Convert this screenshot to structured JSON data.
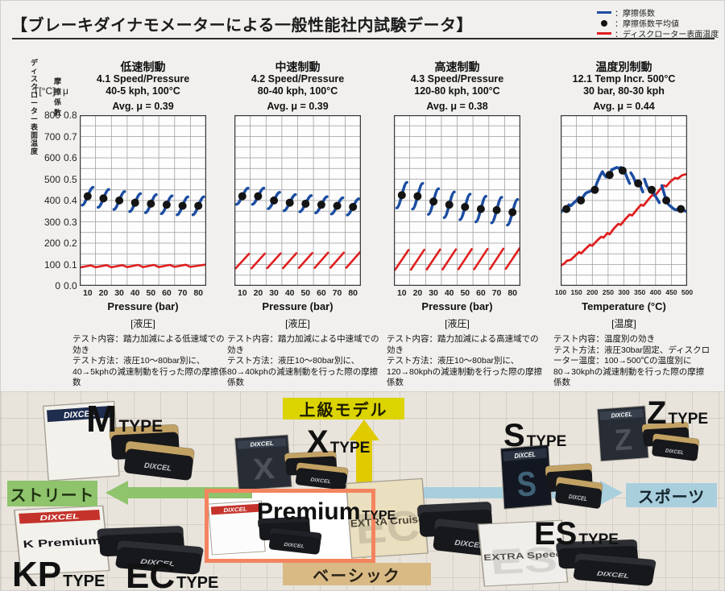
{
  "header": {
    "title": "【ブレーキダイナモメーターによる一般性能社内試験データ】",
    "legend": [
      {
        "swatch": "blue-line",
        "label": "：摩擦係数"
      },
      {
        "swatch": "black-dot",
        "label": "：摩擦係数平均値"
      },
      {
        "swatch": "red-line",
        "label": "：ディスクローター表面温度"
      }
    ]
  },
  "colors": {
    "blue": "#1c4da1",
    "red": "#e01f1f",
    "dot": "#141414",
    "grid": "#9b9b9b",
    "grid_border": "#3c3c3c",
    "plot_bg": "#fdfdfd",
    "street_green": "#8fc36c",
    "sport_blue": "#a9cfdd",
    "upper_yellow": "#dcd400",
    "basic_tan": "#d9ba85",
    "up_arrow_yellow": "#e0ca00",
    "down_arrow_pale": "#ebe4ab",
    "premium_border": "#f4845f"
  },
  "y_axis": {
    "temp_header": "ディスク\nローター\n表面温度",
    "mu_header": "摩擦係数",
    "temp_unit": "T[°C]",
    "mu_unit": "μ",
    "temp_ticks": [
      "800",
      "700",
      "600",
      "500",
      "400",
      "300",
      "200",
      "100",
      "0"
    ],
    "mu_ticks": [
      "0.8",
      "0.7",
      "0.6",
      "0.5",
      "0.4",
      "0.3",
      "0.2",
      "0.1",
      "0.0"
    ]
  },
  "chart_data": [
    {
      "type": "line",
      "category": "低速制動",
      "test_id": "4.1 Speed/Pressure",
      "condition": "40-5 kph, 100°C",
      "avg_label": "Avg. μ = 0.39",
      "avg_mu": 0.39,
      "xlabel": "Pressure (bar)",
      "xlabel_jp": "[液圧]",
      "desc_content": "テスト内容：踏力加減による低速域での効き",
      "desc_method": "テスト方法：液圧10～80bar別に、40→5kphの減速制動を行った際の摩擦係数",
      "x_ticks": [
        10,
        20,
        30,
        40,
        50,
        60,
        70,
        80
      ],
      "x_range": [
        5,
        85
      ],
      "mu_range": [
        0,
        0.8
      ],
      "temp_range": [
        0,
        800
      ],
      "dots": [
        [
          10,
          0.42
        ],
        [
          20,
          0.41
        ],
        [
          30,
          0.4
        ],
        [
          40,
          0.39
        ],
        [
          50,
          0.385
        ],
        [
          60,
          0.38
        ],
        [
          70,
          0.375
        ],
        [
          80,
          0.375
        ]
      ],
      "stroke_halfw": 3.4,
      "stroke_rise": 0.042,
      "red_path": [
        [
          5,
          86
        ],
        [
          12,
          96
        ],
        [
          15,
          87
        ],
        [
          22,
          97
        ],
        [
          25,
          87
        ],
        [
          32,
          97
        ],
        [
          35,
          88
        ],
        [
          42,
          98
        ],
        [
          45,
          88
        ],
        [
          52,
          98
        ],
        [
          55,
          88
        ],
        [
          62,
          98
        ],
        [
          65,
          89
        ],
        [
          72,
          99
        ],
        [
          75,
          89
        ],
        [
          85,
          100
        ]
      ]
    },
    {
      "type": "line",
      "category": "中速制動",
      "test_id": "4.2 Speed/Pressure",
      "condition": "80-40 kph, 100°C",
      "avg_label": "Avg. μ = 0.39",
      "avg_mu": 0.39,
      "xlabel": "Pressure (bar)",
      "xlabel_jp": "[液圧]",
      "desc_content": "テスト内容：踏力加減による中速域での効き",
      "desc_method": "テスト方法：液圧10～80bar別に、80→40kphの減速制動を行った際の摩擦係数",
      "x_ticks": [
        10,
        20,
        30,
        40,
        50,
        60,
        70,
        80
      ],
      "x_range": [
        5,
        85
      ],
      "mu_range": [
        0,
        0.8
      ],
      "temp_range": [
        0,
        800
      ],
      "dots": [
        [
          10,
          0.42
        ],
        [
          20,
          0.42
        ],
        [
          30,
          0.4
        ],
        [
          40,
          0.39
        ],
        [
          50,
          0.385
        ],
        [
          60,
          0.38
        ],
        [
          70,
          0.375
        ],
        [
          80,
          0.37
        ]
      ],
      "stroke_halfw": 3.6,
      "stroke_rise": 0.038,
      "red_path": [
        [
          5.8,
          82
        ],
        [
          14.2,
          150
        ],
        null,
        [
          15.8,
          82
        ],
        [
          24.2,
          151
        ],
        null,
        [
          25.8,
          83
        ],
        [
          34.2,
          152
        ],
        null,
        [
          35.8,
          83
        ],
        [
          44.2,
          153
        ],
        null,
        [
          45.8,
          84
        ],
        [
          54.2,
          154
        ],
        null,
        [
          55.8,
          84
        ],
        [
          64.2,
          155
        ],
        null,
        [
          65.8,
          85
        ],
        [
          74.2,
          156
        ],
        null,
        [
          75.8,
          85
        ],
        [
          84.5,
          158
        ]
      ]
    },
    {
      "type": "line",
      "category": "高速制動",
      "test_id": "4.3 Speed/Pressure",
      "condition": "120-80 kph, 100°C",
      "avg_label": "Avg. μ = 0.38",
      "avg_mu": 0.38,
      "xlabel": "Pressure (bar)",
      "xlabel_jp": "[液圧]",
      "desc_content": "テスト内容：踏力加減による高速域での効き",
      "desc_method": "テスト方法：液圧10～80bar別に、120→80kphの減速制動を行った際の摩擦係数",
      "x_ticks": [
        10,
        20,
        30,
        40,
        50,
        60,
        70,
        80
      ],
      "x_range": [
        5,
        85
      ],
      "mu_range": [
        0,
        0.8
      ],
      "temp_range": [
        0,
        800
      ],
      "dots": [
        [
          10,
          0.425
        ],
        [
          20,
          0.42
        ],
        [
          30,
          0.395
        ],
        [
          40,
          0.38
        ],
        [
          50,
          0.37
        ],
        [
          60,
          0.36
        ],
        [
          70,
          0.355
        ],
        [
          80,
          0.345
        ]
      ],
      "stroke_halfw": 3.2,
      "stroke_rise": 0.06,
      "red_path": [
        [
          5.8,
          76
        ],
        [
          14.2,
          168
        ],
        null,
        [
          15.8,
          76
        ],
        [
          24.2,
          169
        ],
        null,
        [
          25.8,
          77
        ],
        [
          34.2,
          170
        ],
        null,
        [
          35.8,
          77
        ],
        [
          44.2,
          171
        ],
        null,
        [
          45.8,
          78
        ],
        [
          54.2,
          172
        ],
        null,
        [
          55.8,
          78
        ],
        [
          64.2,
          173
        ],
        null,
        [
          65.8,
          79
        ],
        [
          74.2,
          174
        ],
        null,
        [
          75.8,
          80
        ],
        [
          84.5,
          176
        ]
      ]
    },
    {
      "type": "line",
      "category": "温度別制動",
      "test_id": "12.1 Temp Incr. 500°C",
      "condition": "30 bar, 80-30 kph",
      "avg_label": "Avg. μ = 0.44",
      "avg_mu": 0.44,
      "xlabel": "Temperature (°C)",
      "xlabel_jp": "[温度]",
      "desc_content": "テスト内容：温度別の効き",
      "desc_method": "テスト方法：液圧30bar固定、ディスクローター温度：100→500℃の温度別に80→30kphの減速制動を行った際の摩擦係数",
      "x_ticks": [
        100,
        150,
        200,
        250,
        300,
        350,
        400,
        450,
        500
      ],
      "x_range": [
        100,
        500
      ],
      "mu_range": [
        0,
        0.8
      ],
      "temp_range": [
        0,
        800
      ],
      "dots": [
        [
          118,
          0.36
        ],
        [
          164,
          0.4
        ],
        [
          208,
          0.45
        ],
        [
          255,
          0.52
        ],
        [
          296,
          0.54
        ],
        [
          345,
          0.48
        ],
        [
          388,
          0.45
        ],
        [
          434,
          0.4
        ],
        [
          480,
          0.36
        ]
      ],
      "blue_path": [
        [
          100,
          0.345
        ],
        [
          108,
          0.355
        ],
        [
          118,
          0.36
        ],
        [
          126,
          0.38
        ],
        [
          132,
          0.375
        ],
        [
          142,
          0.39
        ],
        [
          150,
          0.4
        ],
        [
          158,
          0.415
        ],
        [
          164,
          0.4
        ],
        [
          172,
          0.42
        ],
        [
          180,
          0.435
        ],
        [
          188,
          0.44
        ],
        [
          196,
          0.445
        ],
        [
          208,
          0.45
        ],
        [
          214,
          0.48
        ],
        [
          220,
          0.5
        ],
        [
          226,
          0.52
        ],
        [
          232,
          0.535
        ],
        [
          238,
          0.52
        ],
        [
          244,
          0.51
        ],
        [
          250,
          0.52
        ],
        [
          255,
          0.52
        ],
        [
          262,
          0.545
        ],
        [
          270,
          0.55
        ],
        [
          278,
          0.555
        ],
        [
          285,
          0.55
        ],
        [
          290,
          0.555
        ],
        [
          296,
          0.54
        ],
        [
          304,
          0.53
        ],
        [
          312,
          0.5
        ],
        [
          318,
          0.48
        ],
        null,
        [
          322,
          0.53
        ],
        [
          330,
          0.51
        ],
        [
          338,
          0.48
        ],
        [
          345,
          0.48
        ],
        [
          352,
          0.47
        ],
        [
          360,
          0.44
        ],
        null,
        [
          365,
          0.5
        ],
        [
          372,
          0.47
        ],
        [
          380,
          0.45
        ],
        [
          388,
          0.45
        ],
        [
          396,
          0.43
        ],
        [
          404,
          0.41
        ],
        [
          412,
          0.39
        ],
        null,
        [
          420,
          0.47
        ],
        [
          428,
          0.43
        ],
        [
          434,
          0.4
        ],
        [
          442,
          0.38
        ],
        [
          450,
          0.37
        ],
        [
          458,
          0.36
        ],
        [
          466,
          0.355
        ],
        [
          474,
          0.365
        ],
        [
          480,
          0.36
        ],
        [
          488,
          0.355
        ],
        [
          495,
          0.35
        ]
      ],
      "red_path": [
        [
          100,
          95
        ],
        [
          112,
          105
        ],
        [
          120,
          118
        ],
        [
          132,
          122
        ],
        [
          145,
          140
        ],
        [
          158,
          158
        ],
        [
          165,
          152
        ],
        [
          178,
          172
        ],
        [
          192,
          192
        ],
        [
          200,
          188
        ],
        [
          214,
          210
        ],
        [
          228,
          230
        ],
        [
          236,
          226
        ],
        [
          248,
          248
        ],
        [
          255,
          242
        ],
        [
          268,
          268
        ],
        [
          282,
          290
        ],
        [
          290,
          286
        ],
        [
          304,
          312
        ],
        [
          318,
          334
        ],
        [
          326,
          330
        ],
        [
          340,
          356
        ],
        [
          354,
          380
        ],
        [
          362,
          376
        ],
        [
          376,
          402
        ],
        [
          390,
          426
        ],
        [
          398,
          422
        ],
        [
          412,
          448
        ],
        [
          426,
          470
        ],
        [
          434,
          466
        ],
        [
          448,
          490
        ],
        [
          462,
          506
        ],
        [
          470,
          502
        ],
        [
          484,
          518
        ],
        [
          500,
          524
        ]
      ]
    }
  ],
  "lineup": {
    "street_label": "ストリート",
    "sport_label": "スポーツ",
    "upper_label": "上級モデル",
    "basic_label": "ベーシック",
    "pad_brand": "DIXCEL",
    "m": {
      "letter": "M",
      "suffix": "TYPE"
    },
    "x": {
      "letter": "X",
      "suffix": "TYPE"
    },
    "s": {
      "letter": "S",
      "suffix": "TYPE"
    },
    "z": {
      "letter": "Z",
      "suffix": "TYPE"
    },
    "kp": {
      "letter": "KP",
      "suffix": "TYPE"
    },
    "ec": {
      "letter": "EC",
      "suffix": "TYPE"
    },
    "es": {
      "letter": "ES",
      "suffix": "TYPE"
    },
    "premium": {
      "letter": "Premium",
      "suffix": "TYPE"
    },
    "products": {
      "m": {
        "brand": "DIXCEL",
        "brand_bg": "#1e2c4e",
        "brand_color": "#ffffff",
        "box_bg": "#f3f1ec",
        "letter": "",
        "pad_back": "#c2a264"
      },
      "x": {
        "brand": "DIXCEL",
        "brand_bg": "#39404d",
        "brand_color": "#ffffff",
        "box_bg": "#272c35",
        "letter": "X",
        "letter_color": "rgba(255,255,255,0.18)",
        "pad_back": "#c2a264"
      },
      "s": {
        "brand": "DIXCEL",
        "brand_bg": "#2a3140",
        "brand_color": "#ffffff",
        "box_bg": "#131722",
        "letter": "S",
        "letter_color": "rgba(120,190,225,0.45)",
        "pad_back": "#c2a264"
      },
      "z": {
        "brand": "DIXCEL",
        "brand_bg": "#39404d",
        "brand_color": "#ffffff",
        "box_bg": "#272c35",
        "letter": "Z",
        "letter_color": "rgba(255,255,255,0.18)",
        "pad_back": "#c2a264"
      },
      "kp": {
        "brand": "DIXCEL",
        "brand_bg": "#c4332b",
        "brand_color": "#ffffff",
        "box_bg": "#f3f1ec",
        "label": "K Premium",
        "label_color": "#15151a",
        "label_size": 11,
        "pad_back": "#2c2e33"
      },
      "ec": {
        "box_bg": "#eadfbe",
        "label": "EXTRA Cruise",
        "label_color": "#4a4336",
        "label_size": 9.5,
        "letter": "EC",
        "letter_color": "rgba(0,0,0,0.12)",
        "pad_back": "#2c2e33"
      },
      "es": {
        "box_bg": "#efeeea",
        "label": "EXTRA Speed",
        "label_color": "#55504a",
        "label_size": 9.5,
        "letter": "ES",
        "letter_color": "rgba(0,0,0,0.10)",
        "pad_back": "#2c2e33"
      },
      "premium": {
        "brand": "DIXCEL",
        "brand_bg": "#c4332b",
        "brand_color": "#ffffff",
        "box_bg": "#fcfcfc",
        "pad_back": "#202228"
      }
    }
  }
}
